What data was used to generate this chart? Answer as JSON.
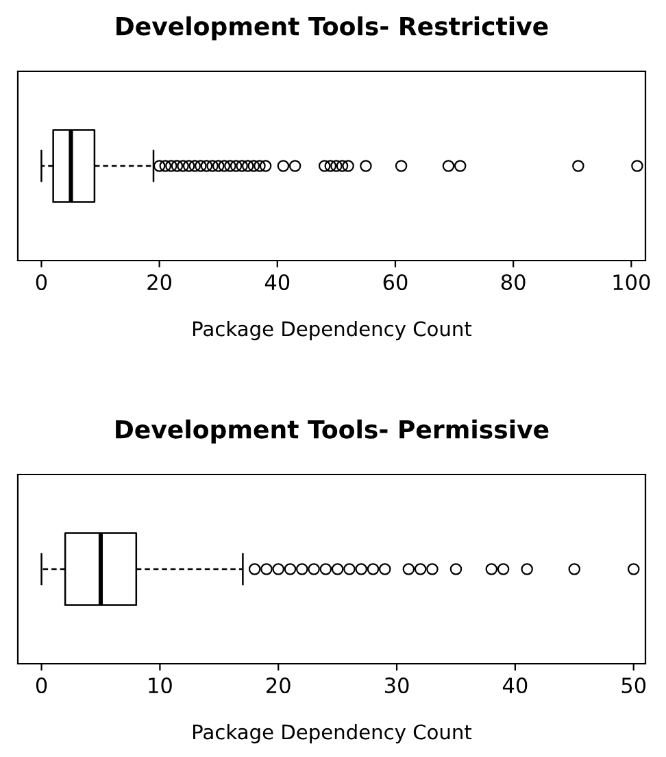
{
  "chart_data": [
    {
      "type": "box",
      "title": "Development Tools- Restrictive",
      "xlabel": "Package Dependency Count",
      "orientation": "horizontal",
      "categories": [
        null
      ],
      "xlim": [
        -4,
        102.4
      ],
      "xticks": [
        0,
        20,
        40,
        60,
        80,
        100
      ],
      "tick_labels": "x",
      "boxes": [
        {
          "low": 0,
          "q1": 2,
          "median": 5,
          "q3": 9,
          "high": 19,
          "outliers": [
            20,
            21,
            22,
            23,
            24,
            25,
            26,
            27,
            28,
            29,
            30,
            31,
            32,
            33,
            34,
            35,
            36,
            37,
            38,
            41,
            43,
            48,
            49,
            50,
            51,
            52,
            55,
            61,
            69,
            71,
            91,
            101
          ]
        }
      ]
    },
    {
      "type": "box",
      "title": "Development Tools- Permissive",
      "xlabel": "Package Dependency Count",
      "orientation": "horizontal",
      "categories": [
        null
      ],
      "xlim": [
        -2,
        51
      ],
      "xticks": [
        0,
        10,
        20,
        30,
        40,
        50
      ],
      "tick_labels": "x",
      "boxes": [
        {
          "low": 0,
          "q1": 2,
          "median": 5,
          "q3": 8,
          "high": 17,
          "outliers": [
            18,
            19,
            20,
            21,
            22,
            23,
            24,
            25,
            26,
            27,
            28,
            29,
            31,
            32,
            33,
            35,
            38,
            39,
            41,
            45,
            50
          ]
        }
      ]
    }
  ]
}
